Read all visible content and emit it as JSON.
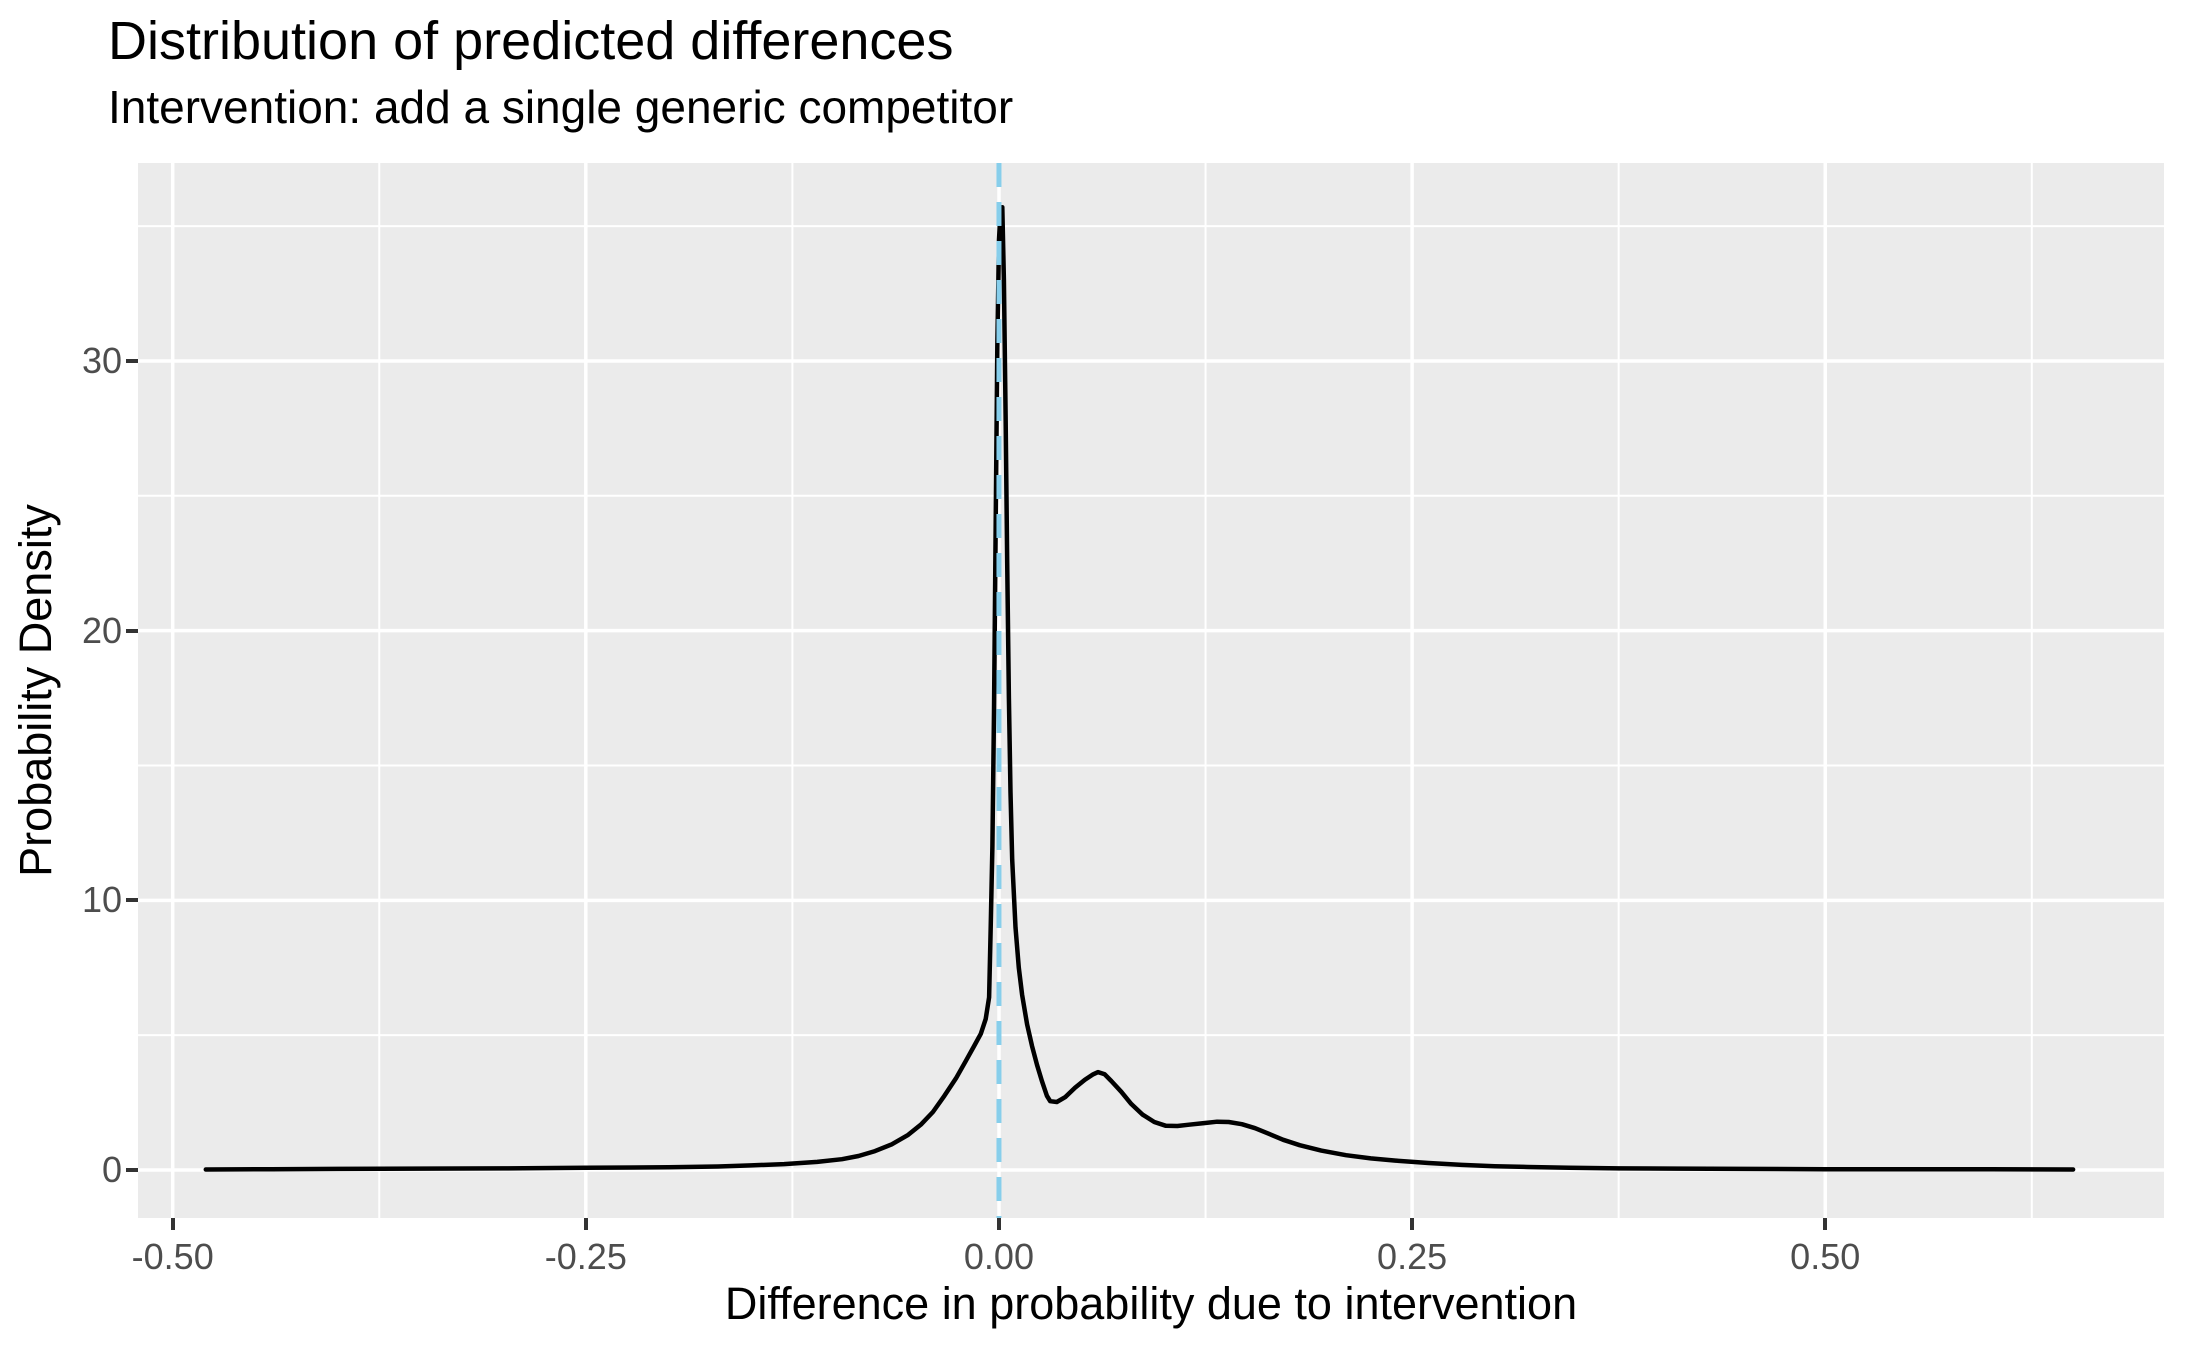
{
  "title": "Distribution of predicted differences",
  "subtitle": "Intervention: add a single generic competitor",
  "colors": {
    "panel_background": "#EBEBEB",
    "gridline": "#FFFFFF",
    "density_curve": "#000000",
    "reference_line": "#87CEEB",
    "tick_label": "#4D4D4D",
    "tick_mark": "#333333",
    "title_text": "#000000"
  },
  "chart_data": {
    "type": "line",
    "title": "Distribution of predicted differences",
    "subtitle": "Intervention: add a single generic competitor",
    "xlabel": "Difference in probability due to intervention",
    "ylabel": "Probability Density",
    "xlim": [
      -0.521,
      0.705
    ],
    "ylim": [
      -1.78,
      37.34
    ],
    "x_ticks": [
      -0.5,
      -0.25,
      0.0,
      0.25,
      0.5
    ],
    "x_tick_labels": [
      "-0.50",
      "-0.25",
      "0.00",
      "0.25",
      "0.50"
    ],
    "y_ticks": [
      0,
      10,
      20,
      30
    ],
    "y_tick_labels": [
      "0",
      "10",
      "20",
      "30"
    ],
    "x_minor_gridlines": [
      -0.375,
      -0.125,
      0.125,
      0.375,
      0.625
    ],
    "y_minor_gridlines": [
      5,
      15,
      25,
      35
    ],
    "grid": true,
    "legend": "none",
    "reference_line": {
      "x": 0.0,
      "style": "dashed",
      "color": "#87CEEB"
    },
    "peak": {
      "x": 0.002,
      "y": 35.7
    },
    "secondary_modes": [
      {
        "x": 0.06,
        "y": 3.63
      },
      {
        "x": 0.133,
        "y": 1.79
      }
    ],
    "series": [
      {
        "name": "density",
        "color": "#000000",
        "points": [
          [
            -0.48,
            0.02
          ],
          [
            -0.44,
            0.03
          ],
          [
            -0.4,
            0.04
          ],
          [
            -0.35,
            0.05
          ],
          [
            -0.3,
            0.06
          ],
          [
            -0.25,
            0.08
          ],
          [
            -0.2,
            0.1
          ],
          [
            -0.17,
            0.13
          ],
          [
            -0.15,
            0.17
          ],
          [
            -0.13,
            0.22
          ],
          [
            -0.11,
            0.3
          ],
          [
            -0.095,
            0.4
          ],
          [
            -0.085,
            0.52
          ],
          [
            -0.075,
            0.7
          ],
          [
            -0.065,
            0.95
          ],
          [
            -0.055,
            1.3
          ],
          [
            -0.047,
            1.7
          ],
          [
            -0.04,
            2.15
          ],
          [
            -0.033,
            2.75
          ],
          [
            -0.026,
            3.4
          ],
          [
            -0.02,
            4.05
          ],
          [
            -0.015,
            4.6
          ],
          [
            -0.011,
            5.05
          ],
          [
            -0.008,
            5.6
          ],
          [
            -0.006,
            6.4
          ],
          [
            -0.005,
            9.0
          ],
          [
            -0.004,
            12.0
          ],
          [
            -0.003,
            17.0
          ],
          [
            -0.002,
            24.0
          ],
          [
            -0.001,
            30.5
          ],
          [
            0.0,
            34.5
          ],
          [
            0.001,
            35.6
          ],
          [
            0.002,
            35.7
          ],
          [
            0.003,
            33.0
          ],
          [
            0.004,
            28.0
          ],
          [
            0.005,
            22.5
          ],
          [
            0.006,
            17.5
          ],
          [
            0.007,
            14.0
          ],
          [
            0.008,
            11.5
          ],
          [
            0.01,
            9.0
          ],
          [
            0.012,
            7.5
          ],
          [
            0.014,
            6.5
          ],
          [
            0.017,
            5.4
          ],
          [
            0.02,
            4.6
          ],
          [
            0.023,
            3.9
          ],
          [
            0.026,
            3.3
          ],
          [
            0.029,
            2.75
          ],
          [
            0.031,
            2.55
          ],
          [
            0.035,
            2.52
          ],
          [
            0.04,
            2.7
          ],
          [
            0.046,
            3.05
          ],
          [
            0.052,
            3.35
          ],
          [
            0.057,
            3.55
          ],
          [
            0.06,
            3.63
          ],
          [
            0.064,
            3.55
          ],
          [
            0.068,
            3.3
          ],
          [
            0.074,
            2.9
          ],
          [
            0.08,
            2.45
          ],
          [
            0.087,
            2.05
          ],
          [
            0.094,
            1.78
          ],
          [
            0.101,
            1.64
          ],
          [
            0.108,
            1.63
          ],
          [
            0.115,
            1.68
          ],
          [
            0.124,
            1.74
          ],
          [
            0.132,
            1.79
          ],
          [
            0.139,
            1.78
          ],
          [
            0.147,
            1.7
          ],
          [
            0.155,
            1.55
          ],
          [
            0.163,
            1.35
          ],
          [
            0.172,
            1.12
          ],
          [
            0.182,
            0.92
          ],
          [
            0.195,
            0.72
          ],
          [
            0.21,
            0.55
          ],
          [
            0.225,
            0.43
          ],
          [
            0.24,
            0.35
          ],
          [
            0.26,
            0.26
          ],
          [
            0.28,
            0.19
          ],
          [
            0.3,
            0.14
          ],
          [
            0.32,
            0.11
          ],
          [
            0.345,
            0.08
          ],
          [
            0.375,
            0.06
          ],
          [
            0.41,
            0.05
          ],
          [
            0.45,
            0.04
          ],
          [
            0.5,
            0.03
          ],
          [
            0.55,
            0.03
          ],
          [
            0.6,
            0.025
          ],
          [
            0.65,
            0.02
          ]
        ]
      }
    ]
  }
}
